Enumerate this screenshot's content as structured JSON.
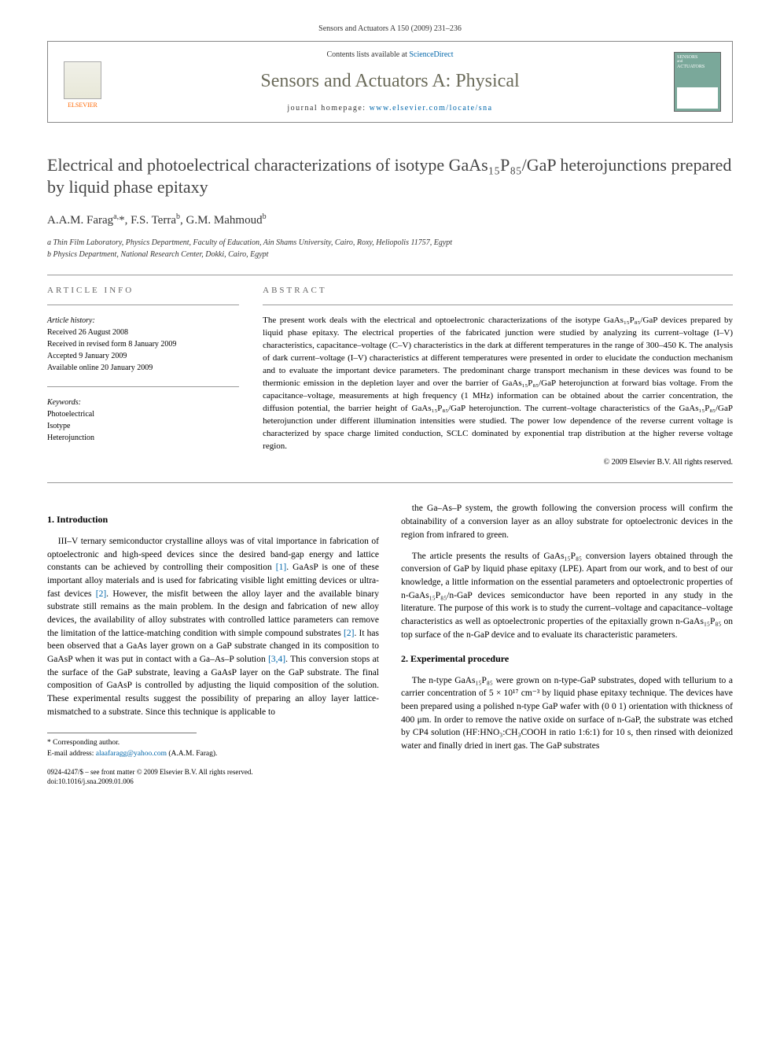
{
  "page_header": "Sensors and Actuators A 150 (2009) 231–236",
  "banner": {
    "contents_prefix": "Contents lists available at ",
    "contents_link": "ScienceDirect",
    "journal_name": "Sensors and Actuators A: Physical",
    "homepage_prefix": "journal homepage: ",
    "homepage_url": "www.elsevier.com/locate/sna",
    "publisher": "ELSEVIER",
    "cover_text1": "SENSORS",
    "cover_text2": "ACTUATORS",
    "cover_text3": "and"
  },
  "title": "Electrical and photoelectrical characterizations of isotype GaAs₁₅P₈₅/GaP heterojunctions prepared by liquid phase epitaxy",
  "authors_html": "A.A.M. Farag<sup>a,</sup>*, F.S. Terra<sup>b</sup>, G.M. Mahmoud<sup>b</sup>",
  "affiliations": {
    "a": "a Thin Film Laboratory, Physics Department, Faculty of Education, Ain Shams University, Cairo, Roxy, Heliopolis 11757, Egypt",
    "b": "b Physics Department, National Research Center, Dokki, Cairo, Egypt"
  },
  "info_labels": {
    "article_info": "ARTICLE INFO",
    "abstract": "ABSTRACT"
  },
  "history": {
    "label": "Article history:",
    "received": "Received 26 August 2008",
    "revised": "Received in revised form 8 January 2009",
    "accepted": "Accepted 9 January 2009",
    "online": "Available online 20 January 2009"
  },
  "keywords": {
    "label": "Keywords:",
    "items": [
      "Photoelectrical",
      "Isotype",
      "Heterojunction"
    ]
  },
  "abstract": "The present work deals with the electrical and optoelectronic characterizations of the isotype GaAs₁₅P₈₅/GaP devices prepared by liquid phase epitaxy. The electrical properties of the fabricated junction were studied by analyzing its current–voltage (I–V) characteristics, capacitance–voltage (C–V) characteristics in the dark at different temperatures in the range of 300–450 K. The analysis of dark current–voltage (I–V) characteristics at different temperatures were presented in order to elucidate the conduction mechanism and to evaluate the important device parameters. The predominant charge transport mechanism in these devices was found to be thermionic emission in the depletion layer and over the barrier of GaAs₁₅P₈₅/GaP heterojunction at forward bias voltage. From the capacitance–voltage, measurements at high frequency (1 MHz) information can be obtained about the carrier concentration, the diffusion potential, the barrier height of GaAs₁₅P₈₅/GaP heterojunction. The current–voltage characteristics of the GaAs₁₅P₈₅/GaP heterojunction under different illumination intensities were studied. The power low dependence of the reverse current voltage is characterized by space charge limited conduction, SCLC dominated by exponential trap distribution at the higher reverse voltage region.",
  "copyright": "© 2009 Elsevier B.V. All rights reserved.",
  "sections": {
    "s1_heading": "1. Introduction",
    "s1_p1": "III–V ternary semiconductor crystalline alloys was of vital importance in fabrication of optoelectronic and high-speed devices since the desired band-gap energy and lattice constants can be achieved by controlling their composition [1]. GaAsP is one of these important alloy materials and is used for fabricating visible light emitting devices or ultra-fast devices [2]. However, the misfit between the alloy layer and the available binary substrate still remains as the main problem. In the design and fabrication of new alloy devices, the availability of alloy substrates with controlled lattice parameters can remove the limitation of the lattice-matching condition with simple compound substrates [2]. It has been observed that a GaAs layer grown on a GaP substrate changed in its composition to GaAsP when it was put in contact with a Ga–As–P solution [3,4]. This conversion stops at the surface of the GaP substrate, leaving a GaAsP layer on the GaP substrate. The final composition of GaAsP is controlled by adjusting the liquid composition of the solution. These experimental results suggest the possibility of preparing an alloy layer lattice-mismatched to a substrate. Since this technique is applicable to",
    "s1_p2": "the Ga–As–P system, the growth following the conversion process will confirm the obtainability of a conversion layer as an alloy substrate for optoelectronic devices in the region from infrared to green.",
    "s1_p3": "The article presents the results of GaAs₁₅P₈₅ conversion layers obtained through the conversion of GaP by liquid phase epitaxy (LPE). Apart from our work, and to best of our knowledge, a little information on the essential parameters and optoelectronic properties of n-GaAs₁₅P₈₅/n-GaP devices semiconductor have been reported in any study in the literature. The purpose of this work is to study the current–voltage and capacitance–voltage characteristics as well as optoelectronic properties of the epitaxially grown n-GaAs₁₅P₈₅ on top surface of the n-GaP device and to evaluate its characteristic parameters.",
    "s2_heading": "2. Experimental procedure",
    "s2_p1": "The n-type GaAs₁₅P₈₅ were grown on n-type-GaP substrates, doped with tellurium to a carrier concentration of 5 × 10¹⁷ cm⁻³ by liquid phase epitaxy technique. The devices have been prepared using a polished n-type GaP wafer with (0 0 1) orientation with thickness of 400 μm. In order to remove the native oxide on surface of n-GaP, the substrate was etched by CP4 solution (HF:HNO₃:CH₃COOH in ratio 1:6:1) for 10 s, then rinsed with deionized water and finally dried in inert gas. The GaP substrates"
  },
  "footnote": {
    "corresponding": "* Corresponding author.",
    "email_label": "E-mail address: ",
    "email": "alaafaragg@yahoo.com",
    "email_suffix": " (A.A.M. Farag)."
  },
  "bottom": {
    "line1": "0924-4247/$ – see front matter © 2009 Elsevier B.V. All rights reserved.",
    "line2": "doi:10.1016/j.sna.2009.01.006"
  },
  "colors": {
    "link": "#0066aa",
    "journal_name": "#6b6b5a",
    "publisher": "#ff6600",
    "cover_bg": "#7aa89a"
  }
}
